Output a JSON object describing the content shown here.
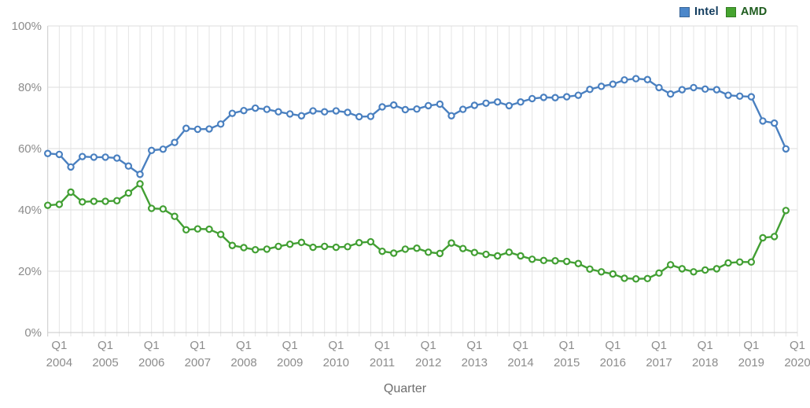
{
  "legend": {
    "items": [
      {
        "label": "Intel",
        "swatch_color": "#4c87ca",
        "text_color": "#123c5e"
      },
      {
        "label": "AMD",
        "swatch_color": "#46a42f",
        "text_color": "#1e5c1e"
      }
    ]
  },
  "chart_data": {
    "type": "line",
    "title": "",
    "x_label": "Quarter",
    "ylabel": "",
    "ylim": [
      0,
      100
    ],
    "grid": true,
    "legend_position": "top-right",
    "y_axis": {
      "ticks": [
        {
          "label": "0%",
          "value": 0
        },
        {
          "label": "20%",
          "value": 20
        },
        {
          "label": "40%",
          "value": 40
        },
        {
          "label": "60%",
          "value": 60
        },
        {
          "label": "80%",
          "value": 80
        },
        {
          "label": "100%",
          "value": 100
        }
      ]
    },
    "x_axis": {
      "q1_label": "Q1",
      "years": [
        "2004",
        "2005",
        "2006",
        "2007",
        "2008",
        "2009",
        "2010",
        "2011",
        "2012",
        "2013",
        "2014",
        "2015",
        "2016",
        "2017",
        "2018",
        "2019",
        "2020"
      ],
      "note_last_label_clipped": "2020 label is cut off at right edge, showing 202"
    },
    "quarters": [
      "Q4 2003",
      "Q1 2004",
      "Q2 2004",
      "Q3 2004",
      "Q4 2004",
      "Q1 2005",
      "Q2 2005",
      "Q3 2005",
      "Q4 2005",
      "Q1 2006",
      "Q2 2006",
      "Q3 2006",
      "Q4 2006",
      "Q1 2007",
      "Q2 2007",
      "Q3 2007",
      "Q4 2007",
      "Q1 2008",
      "Q2 2008",
      "Q3 2008",
      "Q4 2008",
      "Q1 2009",
      "Q2 2009",
      "Q3 2009",
      "Q4 2009",
      "Q1 2010",
      "Q2 2010",
      "Q3 2010",
      "Q4 2010",
      "Q1 2011",
      "Q2 2011",
      "Q3 2011",
      "Q4 2011",
      "Q1 2012",
      "Q2 2012",
      "Q3 2012",
      "Q4 2012",
      "Q1 2013",
      "Q2 2013",
      "Q3 2013",
      "Q4 2013",
      "Q1 2014",
      "Q2 2014",
      "Q3 2014",
      "Q4 2014",
      "Q1 2015",
      "Q2 2015",
      "Q3 2015",
      "Q4 2015",
      "Q1 2016",
      "Q2 2016",
      "Q3 2016",
      "Q4 2016",
      "Q1 2017",
      "Q2 2017",
      "Q3 2017",
      "Q4 2017",
      "Q1 2018",
      "Q2 2018",
      "Q3 2018",
      "Q4 2018",
      "Q1 2019",
      "Q2 2019",
      "Q3 2019",
      "Q4 2019"
    ],
    "series": [
      {
        "name": "Intel",
        "color": "#4a80c0",
        "values": [
          58.4,
          58.1,
          54.0,
          57.4,
          57.2,
          57.2,
          56.9,
          54.3,
          51.6,
          59.4,
          59.8,
          62.0,
          66.6,
          66.3,
          66.4,
          68.0,
          71.5,
          72.4,
          73.2,
          72.8,
          72.0,
          71.3,
          70.7,
          72.3,
          72.0,
          72.3,
          71.8,
          70.4,
          70.5,
          73.6,
          74.2,
          72.7,
          72.9,
          74.0,
          74.5,
          70.7,
          72.8,
          74.1,
          74.8,
          75.2,
          74.0,
          75.2,
          76.3,
          76.7,
          76.6,
          76.9,
          77.4,
          79.3,
          80.3,
          81.0,
          82.4,
          82.8,
          82.5,
          79.9,
          77.8,
          79.2,
          79.9,
          79.4,
          79.2,
          77.4,
          77.1,
          76.9,
          69.0,
          68.3,
          59.9
        ]
      },
      {
        "name": "AMD",
        "color": "#429f33",
        "values": [
          41.5,
          41.8,
          45.8,
          42.6,
          42.8,
          42.8,
          43.0,
          45.5,
          48.5,
          40.5,
          40.3,
          37.9,
          33.5,
          33.8,
          33.7,
          32.0,
          28.4,
          27.7,
          27.0,
          27.2,
          28.1,
          28.8,
          29.4,
          27.8,
          28.1,
          27.8,
          28.0,
          29.3,
          29.6,
          26.5,
          25.9,
          27.2,
          27.5,
          26.2,
          25.8,
          29.2,
          27.4,
          26.1,
          25.5,
          25.0,
          26.2,
          25.0,
          23.9,
          23.5,
          23.4,
          23.2,
          22.5,
          20.7,
          19.8,
          19.1,
          17.7,
          17.5,
          17.6,
          19.4,
          22.1,
          20.8,
          19.8,
          20.4,
          20.8,
          22.7,
          23.0,
          23.0,
          30.9,
          31.3,
          39.8
        ]
      }
    ]
  }
}
